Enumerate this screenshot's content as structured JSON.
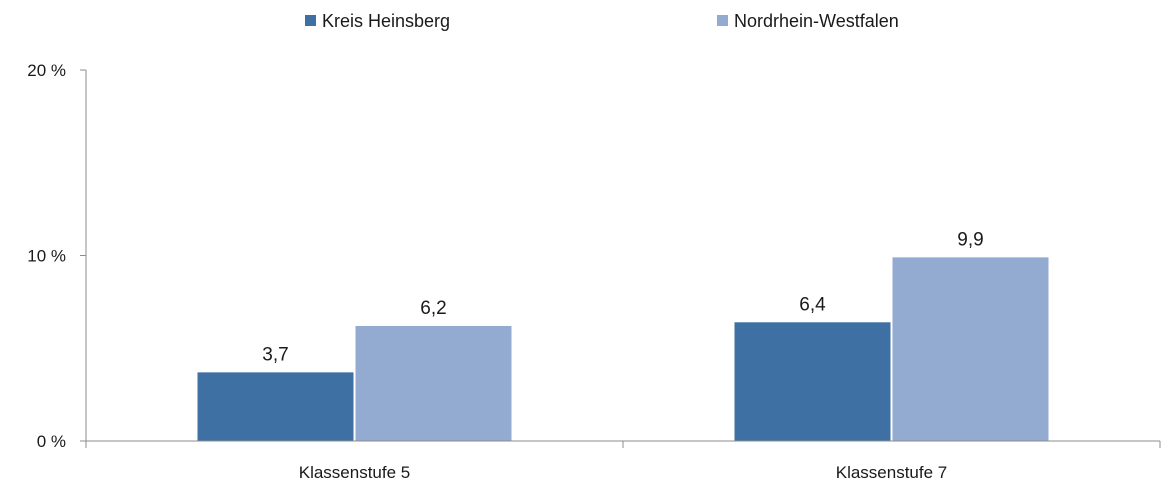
{
  "chart_data": {
    "type": "bar",
    "categories": [
      "Klassenstufe 5",
      "Klassenstufe 7"
    ],
    "series": [
      {
        "name": "Kreis Heinsberg",
        "values": [
          3.7,
          6.4
        ],
        "labels": [
          "3,7",
          "6,4"
        ],
        "color": "#3e70a4"
      },
      {
        "name": "Nordrhein-Westfalen",
        "values": [
          6.2,
          9.9
        ],
        "labels": [
          "6,2",
          "9,9"
        ],
        "color": "#93aad1"
      }
    ],
    "title": "",
    "xlabel": "",
    "ylabel": "",
    "ylim": [
      0,
      20
    ],
    "yticks": [
      0,
      10,
      20
    ],
    "ytick_labels": [
      "0 %",
      "10 %",
      "20 %"
    ],
    "grid": false,
    "legend_position": "top-center"
  }
}
